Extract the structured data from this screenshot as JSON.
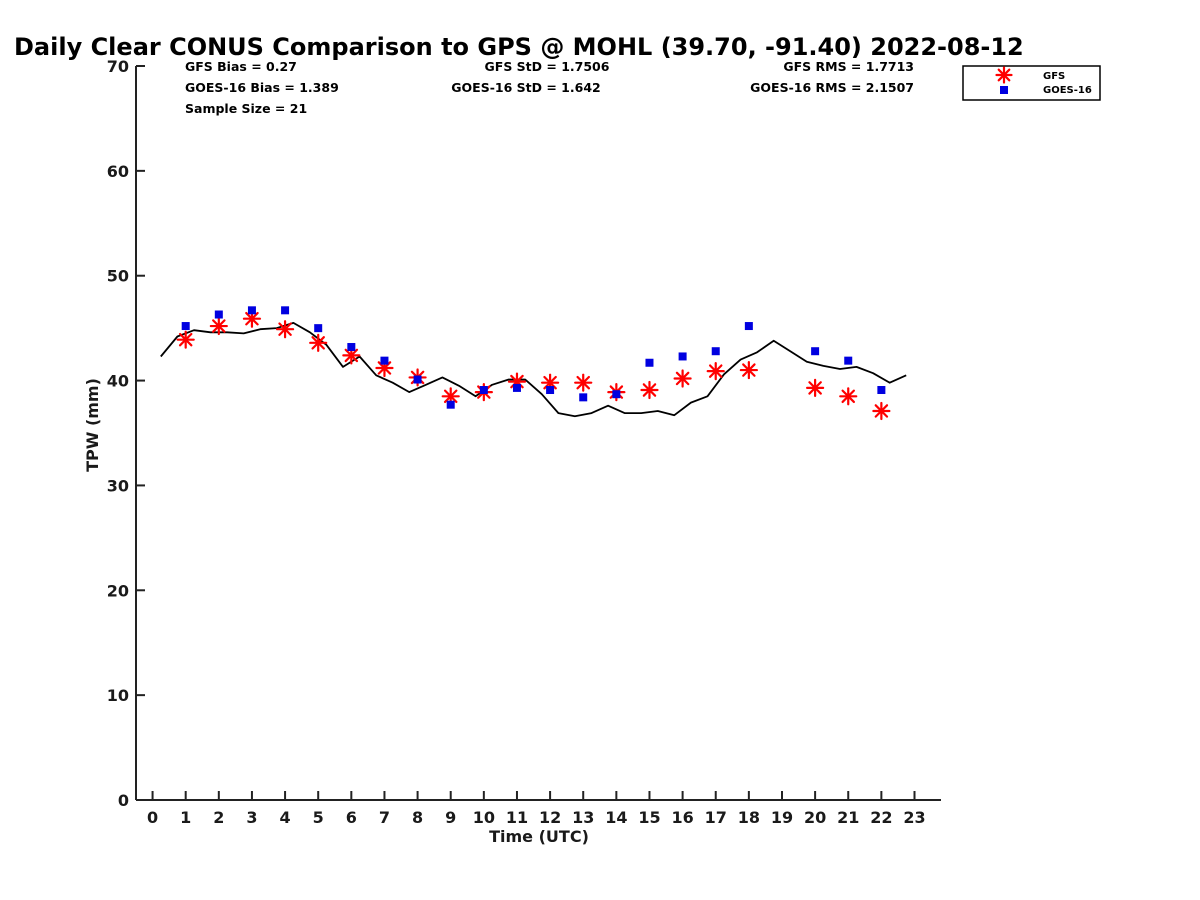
{
  "chart_data": {
    "type": "scatter",
    "title": "Daily Clear CONUS Comparison to GPS @ MOHL (39.70, -91.40) 2022-08-12",
    "xlabel": "Time (UTC)",
    "ylabel": "TPW (mm)",
    "xlim": [
      -0.5,
      23.8
    ],
    "ylim": [
      0,
      70
    ],
    "x_ticks": [
      0,
      1,
      2,
      3,
      4,
      5,
      6,
      7,
      8,
      9,
      10,
      11,
      12,
      13,
      14,
      15,
      16,
      17,
      18,
      19,
      20,
      21,
      22,
      23
    ],
    "y_ticks": [
      0,
      10,
      20,
      30,
      40,
      50,
      60,
      70
    ],
    "grid": false,
    "legend_position": "top-right, outside plot area",
    "stats": {
      "gfs_bias": "GFS Bias = 0.27",
      "gfs_std": "GFS StD = 1.7506",
      "gfs_rms": "GFS RMS = 1.7713",
      "goes_bias": "GOES-16 Bias = 1.389",
      "goes_std": "GOES-16 StD = 1.642",
      "goes_rms": "GOES-16 RMS = 2.1507",
      "sample_size": "Sample Size = 21"
    },
    "series": [
      {
        "name": "GFS",
        "marker": "asterisk",
        "color": "#ff0000",
        "points": [
          [
            1,
            43.9
          ],
          [
            2,
            45.2
          ],
          [
            3,
            45.9
          ],
          [
            4,
            44.9
          ],
          [
            5,
            43.6
          ],
          [
            6,
            42.4
          ],
          [
            7,
            41.2
          ],
          [
            8,
            40.3
          ],
          [
            9,
            38.5
          ],
          [
            10,
            38.9
          ],
          [
            11,
            39.9
          ],
          [
            12,
            39.8
          ],
          [
            13,
            39.8
          ],
          [
            14,
            38.9
          ],
          [
            15,
            39.1
          ],
          [
            16,
            40.2
          ],
          [
            17,
            40.9
          ],
          [
            18,
            41.0
          ],
          [
            20,
            39.3
          ],
          [
            21,
            38.5
          ],
          [
            22,
            37.1
          ]
        ]
      },
      {
        "name": "GOES-16",
        "marker": "square",
        "color": "#0000e0",
        "points": [
          [
            1,
            45.2
          ],
          [
            2,
            46.3
          ],
          [
            3,
            46.7
          ],
          [
            4,
            46.7
          ],
          [
            5,
            45.0
          ],
          [
            6,
            43.2
          ],
          [
            7,
            41.9
          ],
          [
            8,
            40.1
          ],
          [
            9,
            37.7
          ],
          [
            10,
            39.1
          ],
          [
            11,
            39.3
          ],
          [
            12,
            39.1
          ],
          [
            13,
            38.4
          ],
          [
            14,
            38.7
          ],
          [
            15,
            41.7
          ],
          [
            16,
            42.3
          ],
          [
            17,
            42.8
          ],
          [
            18,
            45.2
          ],
          [
            20,
            42.8
          ],
          [
            21,
            41.9
          ],
          [
            22,
            39.1
          ]
        ]
      },
      {
        "name": "GPS",
        "style": "line",
        "color": "#000000",
        "points": [
          [
            0.25,
            42.3
          ],
          [
            0.75,
            44.2
          ],
          [
            1.25,
            44.8
          ],
          [
            1.75,
            44.6
          ],
          [
            2.25,
            44.6
          ],
          [
            2.75,
            44.5
          ],
          [
            3.25,
            44.9
          ],
          [
            3.75,
            45.0
          ],
          [
            4.25,
            45.5
          ],
          [
            4.75,
            44.6
          ],
          [
            5.25,
            43.4
          ],
          [
            5.75,
            41.3
          ],
          [
            6.25,
            42.3
          ],
          [
            6.75,
            40.5
          ],
          [
            7.25,
            39.8
          ],
          [
            7.75,
            38.9
          ],
          [
            8.25,
            39.6
          ],
          [
            8.75,
            40.3
          ],
          [
            9.25,
            39.5
          ],
          [
            9.75,
            38.5
          ],
          [
            10.25,
            39.6
          ],
          [
            10.75,
            40.1
          ],
          [
            11.25,
            40.1
          ],
          [
            11.75,
            38.7
          ],
          [
            12.25,
            36.9
          ],
          [
            12.75,
            36.6
          ],
          [
            13.25,
            36.9
          ],
          [
            13.75,
            37.6
          ],
          [
            14.25,
            36.9
          ],
          [
            14.75,
            36.9
          ],
          [
            15.25,
            37.1
          ],
          [
            15.75,
            36.7
          ],
          [
            16.25,
            37.9
          ],
          [
            16.75,
            38.5
          ],
          [
            17.25,
            40.6
          ],
          [
            17.75,
            42.0
          ],
          [
            18.25,
            42.7
          ],
          [
            18.75,
            43.8
          ],
          [
            19.25,
            42.8
          ],
          [
            19.75,
            41.8
          ],
          [
            20.25,
            41.4
          ],
          [
            20.75,
            41.1
          ],
          [
            21.25,
            41.3
          ],
          [
            21.75,
            40.7
          ],
          [
            22.25,
            39.8
          ],
          [
            22.75,
            40.5
          ]
        ]
      }
    ]
  }
}
